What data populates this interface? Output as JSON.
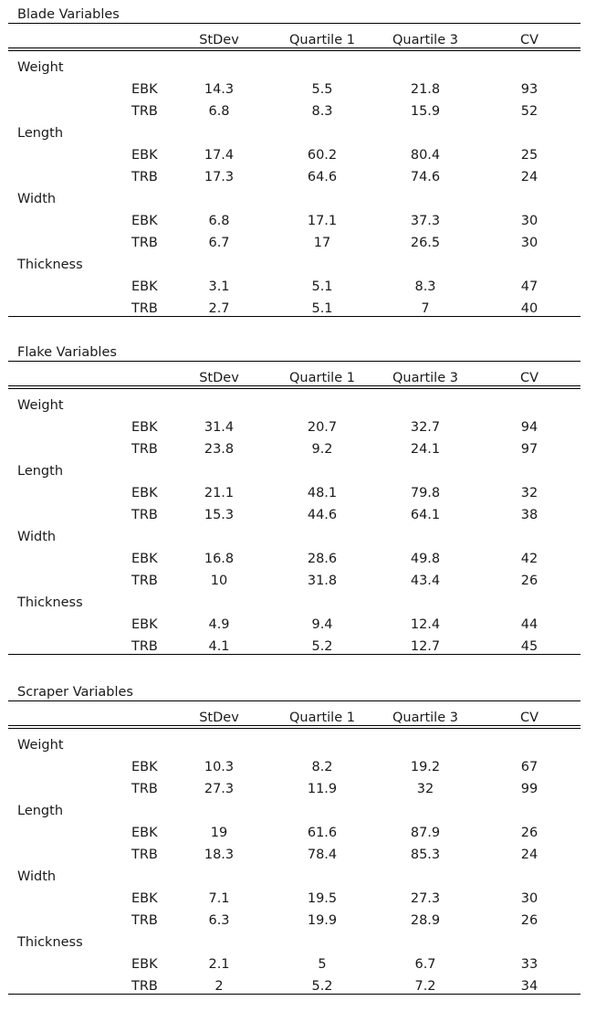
{
  "columns": [
    "StDev",
    "Quartile 1",
    "Quartile 3",
    "CV"
  ],
  "sections": [
    {
      "title": "Blade Variables",
      "variables": [
        {
          "name": "Weight",
          "rows": [
            {
              "group": "EBK",
              "values": [
                "14.3",
                "5.5",
                "21.8",
                "93"
              ]
            },
            {
              "group": "TRB",
              "values": [
                "6.8",
                "8.3",
                "15.9",
                "52"
              ]
            }
          ]
        },
        {
          "name": "Length",
          "rows": [
            {
              "group": "EBK",
              "values": [
                "17.4",
                "60.2",
                "80.4",
                "25"
              ]
            },
            {
              "group": "TRB",
              "values": [
                "17.3",
                "64.6",
                "74.6",
                "24"
              ]
            }
          ]
        },
        {
          "name": "Width",
          "rows": [
            {
              "group": "EBK",
              "values": [
                "6.8",
                "17.1",
                "37.3",
                "30"
              ]
            },
            {
              "group": "TRB",
              "values": [
                "6.7",
                "17",
                "26.5",
                "30"
              ]
            }
          ]
        },
        {
          "name": "Thickness",
          "rows": [
            {
              "group": "EBK",
              "values": [
                "3.1",
                "5.1",
                "8.3",
                "47"
              ]
            },
            {
              "group": "TRB",
              "values": [
                "2.7",
                "5.1",
                "7",
                "40"
              ]
            }
          ]
        }
      ]
    },
    {
      "title": "Flake Variables",
      "variables": [
        {
          "name": "Weight",
          "rows": [
            {
              "group": "EBK",
              "values": [
                "31.4",
                "20.7",
                "32.7",
                "94"
              ]
            },
            {
              "group": "TRB",
              "values": [
                "23.8",
                "9.2",
                "24.1",
                "97"
              ]
            }
          ]
        },
        {
          "name": "Length",
          "rows": [
            {
              "group": "EBK",
              "values": [
                "21.1",
                "48.1",
                "79.8",
                "32"
              ]
            },
            {
              "group": "TRB",
              "values": [
                "15.3",
                "44.6",
                "64.1",
                "38"
              ]
            }
          ]
        },
        {
          "name": "Width",
          "rows": [
            {
              "group": "EBK",
              "values": [
                "16.8",
                "28.6",
                "49.8",
                "42"
              ]
            },
            {
              "group": "TRB",
              "values": [
                "10",
                "31.8",
                "43.4",
                "26"
              ]
            }
          ]
        },
        {
          "name": "Thickness",
          "rows": [
            {
              "group": "EBK",
              "values": [
                "4.9",
                "9.4",
                "12.4",
                "44"
              ]
            },
            {
              "group": "TRB",
              "values": [
                "4.1",
                "5.2",
                "12.7",
                "45"
              ]
            }
          ]
        }
      ]
    },
    {
      "title": "Scraper Variables",
      "variables": [
        {
          "name": "Weight",
          "rows": [
            {
              "group": "EBK",
              "values": [
                "10.3",
                "8.2",
                "19.2",
                "67"
              ]
            },
            {
              "group": "TRB",
              "values": [
                "27.3",
                "11.9",
                "32",
                "99"
              ]
            }
          ]
        },
        {
          "name": "Length",
          "rows": [
            {
              "group": "EBK",
              "values": [
                "19",
                "61.6",
                "87.9",
                "26"
              ]
            },
            {
              "group": "TRB",
              "values": [
                "18.3",
                "78.4",
                "85.3",
                "24"
              ]
            }
          ]
        },
        {
          "name": "Width",
          "rows": [
            {
              "group": "EBK",
              "values": [
                "7.1",
                "19.5",
                "27.3",
                "30"
              ]
            },
            {
              "group": "TRB",
              "values": [
                "6.3",
                "19.9",
                "28.9",
                "26"
              ]
            }
          ]
        },
        {
          "name": "Thickness",
          "rows": [
            {
              "group": "EBK",
              "values": [
                "2.1",
                "5",
                "6.7",
                "33"
              ]
            },
            {
              "group": "TRB",
              "values": [
                "2",
                "5.2",
                "7.2",
                "34"
              ]
            }
          ]
        }
      ]
    }
  ]
}
